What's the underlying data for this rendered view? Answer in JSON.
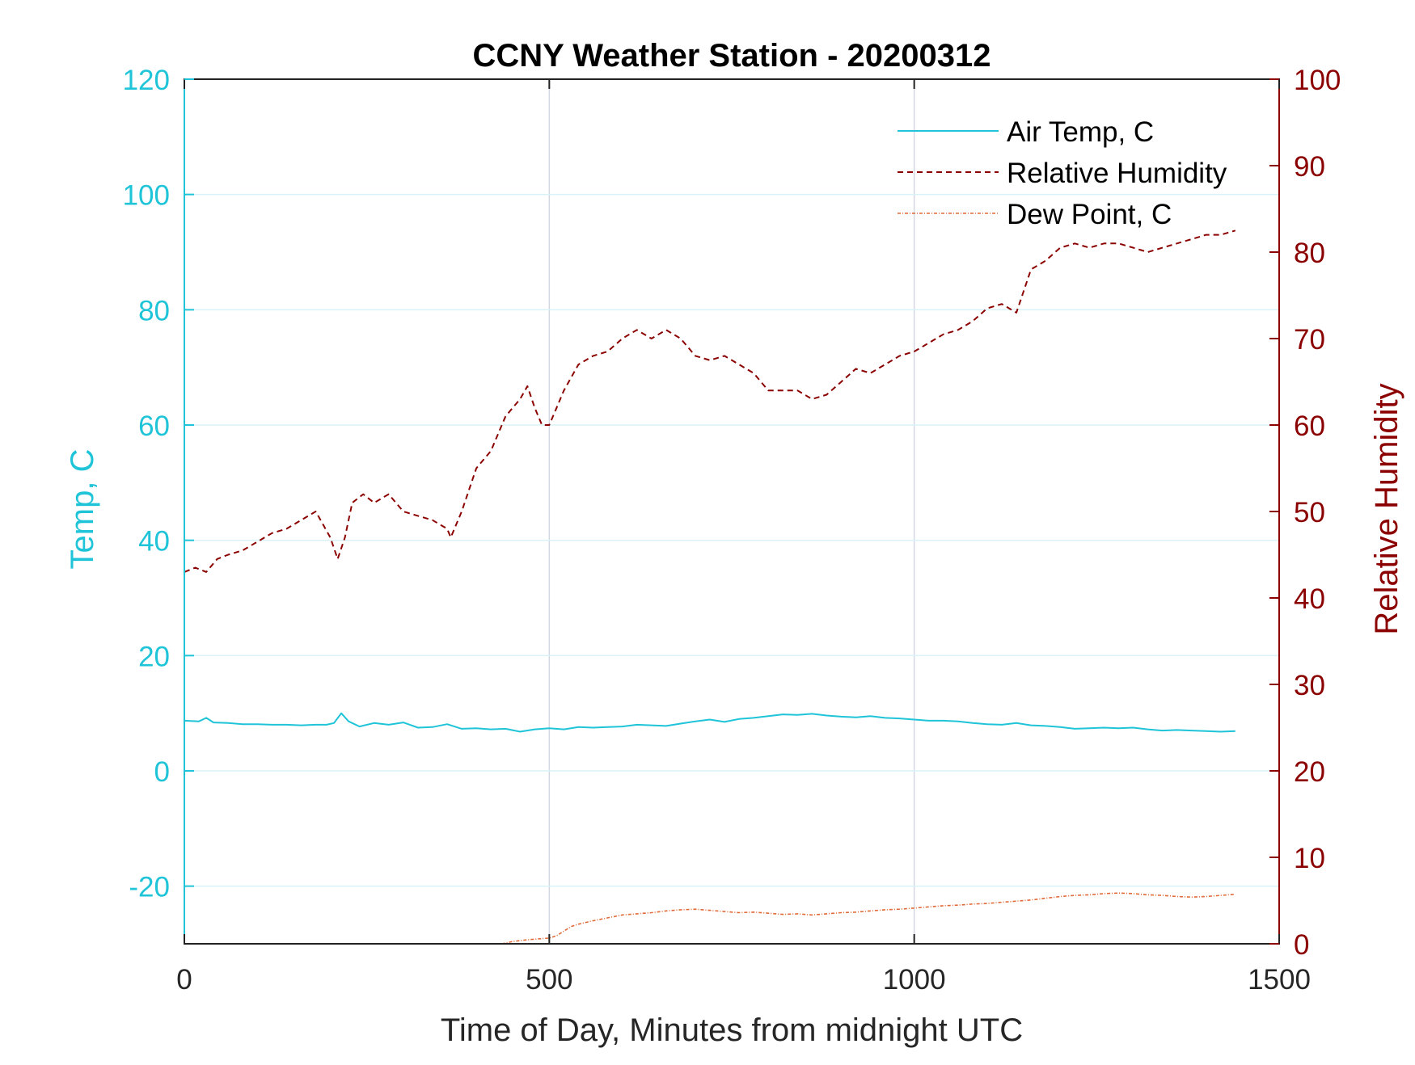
{
  "chart_data": {
    "type": "line",
    "title": "CCNY Weather Station - 20200312",
    "xlabel": "Time of Day, Minutes from midnight UTC",
    "ylabel_left": "Temp, C",
    "ylabel_right": "Relative Humidity",
    "xlim": [
      0,
      1500
    ],
    "ylim_left": [
      -30,
      120
    ],
    "ylim_right": [
      0,
      100
    ],
    "x_ticks": [
      "0",
      "500",
      "1000",
      "1500"
    ],
    "y_ticks_left": [
      "-20",
      "0",
      "20",
      "40",
      "60",
      "80",
      "100",
      "120"
    ],
    "y_ticks_right": [
      "0",
      "10",
      "20",
      "30",
      "40",
      "50",
      "60",
      "70",
      "80",
      "90",
      "100"
    ],
    "grid": true,
    "legend_position": "top-right",
    "colors": {
      "temp": "#1fc4d8",
      "humidity": "#8b0000",
      "dewpoint": "#e06a38",
      "grid_x": "#d3d8e2",
      "grid_y": "#d8f2f7",
      "axis": "#222222"
    },
    "series": [
      {
        "name": "Air Temp, C",
        "axis": "left",
        "style": "solid",
        "x": [
          0,
          20,
          30,
          40,
          60,
          80,
          100,
          120,
          140,
          160,
          180,
          195,
          205,
          215,
          225,
          240,
          260,
          280,
          300,
          320,
          340,
          360,
          380,
          400,
          420,
          440,
          460,
          480,
          500,
          520,
          540,
          560,
          580,
          600,
          620,
          640,
          660,
          680,
          700,
          720,
          740,
          760,
          780,
          800,
          820,
          840,
          860,
          880,
          900,
          920,
          940,
          960,
          980,
          1000,
          1020,
          1040,
          1060,
          1080,
          1100,
          1120,
          1140,
          1160,
          1180,
          1200,
          1220,
          1240,
          1260,
          1280,
          1300,
          1320,
          1340,
          1360,
          1380,
          1400,
          1420,
          1440
        ],
        "values": [
          8.7,
          8.6,
          9.2,
          8.4,
          8.3,
          8.1,
          8.1,
          8.0,
          8.0,
          7.9,
          8.0,
          8.0,
          8.3,
          10.0,
          8.6,
          7.7,
          8.3,
          8.0,
          8.4,
          7.5,
          7.6,
          8.1,
          7.3,
          7.4,
          7.2,
          7.3,
          6.8,
          7.2,
          7.4,
          7.2,
          7.6,
          7.5,
          7.6,
          7.7,
          8.0,
          7.9,
          7.8,
          8.2,
          8.6,
          8.9,
          8.5,
          9.0,
          9.2,
          9.5,
          9.8,
          9.7,
          9.9,
          9.6,
          9.4,
          9.3,
          9.5,
          9.2,
          9.1,
          8.9,
          8.7,
          8.7,
          8.6,
          8.3,
          8.1,
          8.0,
          8.3,
          7.9,
          7.8,
          7.6,
          7.3,
          7.4,
          7.5,
          7.4,
          7.5,
          7.2,
          7.0,
          7.1,
          7.0,
          6.9,
          6.8,
          6.9
        ]
      },
      {
        "name": "Relative Humidity",
        "axis": "right",
        "style": "dashed",
        "x": [
          0,
          15,
          30,
          45,
          60,
          80,
          100,
          120,
          140,
          160,
          180,
          200,
          210,
          220,
          230,
          245,
          260,
          280,
          300,
          320,
          340,
          360,
          365,
          380,
          400,
          420,
          440,
          460,
          470,
          480,
          490,
          500,
          510,
          520,
          540,
          560,
          580,
          600,
          620,
          640,
          660,
          680,
          700,
          720,
          740,
          760,
          780,
          800,
          820,
          840,
          860,
          880,
          900,
          920,
          940,
          960,
          980,
          1000,
          1020,
          1040,
          1060,
          1080,
          1100,
          1120,
          1140,
          1160,
          1180,
          1200,
          1220,
          1240,
          1260,
          1280,
          1300,
          1320,
          1340,
          1360,
          1380,
          1400,
          1420,
          1440
        ],
        "values": [
          43,
          43.5,
          43,
          44.5,
          45,
          45.5,
          46.5,
          47.5,
          48,
          49,
          50,
          47,
          44.5,
          47,
          51,
          52,
          51,
          52,
          50,
          49.5,
          49,
          48,
          47,
          50,
          55,
          57,
          61,
          63,
          64.5,
          62,
          60,
          60,
          62,
          64,
          67,
          68,
          68.5,
          70,
          71,
          70,
          71,
          70,
          68,
          67.5,
          68,
          67,
          66,
          64,
          64,
          64,
          63,
          63.5,
          65,
          66.5,
          66,
          67,
          68,
          68.5,
          69.5,
          70.5,
          71,
          72,
          73.5,
          74,
          73,
          78,
          79,
          80.5,
          81,
          80.5,
          81,
          81,
          80.5,
          80,
          80.5,
          81,
          81.5,
          82,
          82,
          82.5
        ]
      },
      {
        "name": "Dew Point, C",
        "axis": "left",
        "style": "dashdot",
        "x": [
          435,
          450,
          470,
          490,
          500,
          510,
          520,
          530,
          540,
          560,
          580,
          600,
          620,
          640,
          660,
          680,
          700,
          720,
          740,
          760,
          780,
          800,
          820,
          840,
          860,
          880,
          900,
          920,
          940,
          960,
          980,
          1000,
          1020,
          1040,
          1060,
          1080,
          1100,
          1120,
          1140,
          1160,
          1180,
          1200,
          1220,
          1240,
          1260,
          1280,
          1300,
          1320,
          1340,
          1360,
          1380,
          1400,
          1420,
          1440
        ],
        "values": [
          -30.0,
          -29.6,
          -29.3,
          -29.1,
          -29.0,
          -28.6,
          -27.8,
          -27.0,
          -26.6,
          -26.0,
          -25.5,
          -25.0,
          -24.8,
          -24.6,
          -24.3,
          -24.1,
          -24.0,
          -24.2,
          -24.4,
          -24.6,
          -24.5,
          -24.7,
          -24.9,
          -24.8,
          -25.0,
          -24.8,
          -24.6,
          -24.5,
          -24.3,
          -24.1,
          -24.0,
          -23.8,
          -23.6,
          -23.4,
          -23.3,
          -23.1,
          -23.0,
          -22.8,
          -22.6,
          -22.4,
          -22.1,
          -21.8,
          -21.6,
          -21.5,
          -21.3,
          -21.2,
          -21.3,
          -21.5,
          -21.6,
          -21.8,
          -21.9,
          -21.8,
          -21.6,
          -21.4
        ]
      }
    ]
  }
}
